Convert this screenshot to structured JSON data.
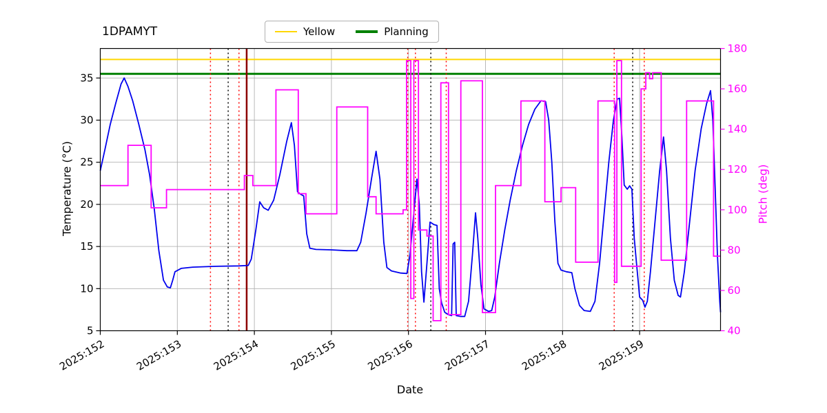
{
  "title": "1DPAMYT",
  "legend": {
    "entries": [
      {
        "label": "Yellow",
        "color": "#ffd700",
        "linewidth": 2.5
      },
      {
        "label": "Planning",
        "color": "#008000",
        "linewidth": 3.5
      }
    ]
  },
  "chart_data": {
    "type": "line",
    "title": "1DPAMYT",
    "xlabel": "Date",
    "ylabel_left": "Temperature (°C)",
    "ylabel_right": "Pitch (deg)",
    "grid": true,
    "xlim": [
      152.0,
      160.05
    ],
    "ylim_temp": [
      5,
      38.5
    ],
    "ylim_pitch": [
      40,
      180
    ],
    "x_ticks": [
      {
        "day": 152,
        "label": "2025:152"
      },
      {
        "day": 153,
        "label": "2025:153"
      },
      {
        "day": 154,
        "label": "2025:154"
      },
      {
        "day": 155,
        "label": "2025:155"
      },
      {
        "day": 156,
        "label": "2025:156"
      },
      {
        "day": 157,
        "label": "2025:157"
      },
      {
        "day": 158,
        "label": "2025:158"
      },
      {
        "day": 159,
        "label": "2025:159"
      }
    ],
    "temp_ticks": [
      5,
      10,
      15,
      20,
      25,
      30,
      35
    ],
    "pitch_ticks": [
      40,
      60,
      80,
      100,
      120,
      140,
      160,
      180
    ],
    "hlines": [
      {
        "name": "Yellow",
        "y": 37.2,
        "color": "#ffd700",
        "width": 2
      },
      {
        "name": "Planning",
        "y": 35.5,
        "color": "#008000",
        "width": 3
      }
    ],
    "vlines": [
      {
        "x": 153.43,
        "color": "#ff0000",
        "style": "dotted",
        "width": 1.5
      },
      {
        "x": 153.66,
        "color": "#000000",
        "style": "dotted",
        "width": 1.5
      },
      {
        "x": 153.8,
        "color": "#ff0000",
        "style": "dotted",
        "width": 1.5
      },
      {
        "x": 153.9,
        "color": "#8b0000",
        "style": "solid",
        "width": 2.5
      },
      {
        "x": 155.99,
        "color": "#ff0000",
        "style": "dotted",
        "width": 1.5
      },
      {
        "x": 156.09,
        "color": "#ff0000",
        "style": "dotted",
        "width": 1.5
      },
      {
        "x": 156.29,
        "color": "#000000",
        "style": "dotted",
        "width": 1.5
      },
      {
        "x": 156.49,
        "color": "#ff0000",
        "style": "dotted",
        "width": 1.5
      },
      {
        "x": 158.67,
        "color": "#ff0000",
        "style": "dotted",
        "width": 1.5
      },
      {
        "x": 158.91,
        "color": "#000000",
        "style": "dotted",
        "width": 1.5
      },
      {
        "x": 159.06,
        "color": "#ff0000",
        "style": "dotted",
        "width": 1.5
      }
    ],
    "series": [
      {
        "name": "Temperature",
        "axis": "left",
        "color": "#0000ee",
        "mode": "linear",
        "points": [
          [
            152.0,
            24.0
          ],
          [
            152.06,
            26.5
          ],
          [
            152.13,
            29.5
          ],
          [
            152.2,
            32.0
          ],
          [
            152.27,
            34.3
          ],
          [
            152.31,
            35.0
          ],
          [
            152.36,
            34.0
          ],
          [
            152.42,
            32.3
          ],
          [
            152.5,
            29.5
          ],
          [
            152.58,
            26.5
          ],
          [
            152.64,
            23.5
          ],
          [
            152.7,
            19.5
          ],
          [
            152.76,
            14.5
          ],
          [
            152.82,
            11.0
          ],
          [
            152.87,
            10.2
          ],
          [
            152.91,
            10.1
          ],
          [
            152.94,
            11.0
          ],
          [
            152.97,
            12.0
          ],
          [
            153.05,
            12.4
          ],
          [
            153.2,
            12.55
          ],
          [
            153.5,
            12.65
          ],
          [
            153.8,
            12.7
          ],
          [
            153.92,
            12.75
          ],
          [
            153.96,
            13.5
          ],
          [
            154.02,
            17.0
          ],
          [
            154.07,
            20.3
          ],
          [
            154.12,
            19.6
          ],
          [
            154.18,
            19.3
          ],
          [
            154.25,
            20.5
          ],
          [
            154.33,
            23.5
          ],
          [
            154.42,
            27.5
          ],
          [
            154.48,
            29.7
          ],
          [
            154.52,
            27.0
          ],
          [
            154.56,
            21.5
          ],
          [
            154.6,
            21.2
          ],
          [
            154.64,
            21.0
          ],
          [
            154.68,
            16.5
          ],
          [
            154.72,
            14.8
          ],
          [
            154.8,
            14.65
          ],
          [
            155.0,
            14.6
          ],
          [
            155.2,
            14.5
          ],
          [
            155.33,
            14.5
          ],
          [
            155.38,
            15.5
          ],
          [
            155.45,
            19.0
          ],
          [
            155.52,
            23.0
          ],
          [
            155.58,
            26.3
          ],
          [
            155.63,
            23.0
          ],
          [
            155.68,
            15.5
          ],
          [
            155.72,
            12.5
          ],
          [
            155.78,
            12.1
          ],
          [
            155.9,
            11.85
          ],
          [
            155.98,
            11.8
          ],
          [
            156.02,
            14.0
          ],
          [
            156.07,
            19.0
          ],
          [
            156.11,
            23.0
          ],
          [
            156.14,
            20.0
          ],
          [
            156.17,
            12.0
          ],
          [
            156.2,
            8.4
          ],
          [
            156.24,
            13.0
          ],
          [
            156.28,
            17.9
          ],
          [
            156.33,
            17.6
          ],
          [
            156.37,
            17.5
          ],
          [
            156.4,
            10.0
          ],
          [
            156.43,
            8.3
          ],
          [
            156.47,
            7.2
          ],
          [
            156.52,
            6.9
          ],
          [
            156.56,
            6.8
          ],
          [
            156.58,
            15.3
          ],
          [
            156.6,
            15.5
          ],
          [
            156.62,
            6.8
          ],
          [
            156.68,
            6.7
          ],
          [
            156.73,
            6.7
          ],
          [
            156.78,
            8.5
          ],
          [
            156.83,
            14.0
          ],
          [
            156.87,
            19.0
          ],
          [
            156.9,
            16.0
          ],
          [
            156.94,
            10.5
          ],
          [
            156.98,
            7.6
          ],
          [
            157.04,
            7.3
          ],
          [
            157.08,
            7.4
          ],
          [
            157.12,
            9.0
          ],
          [
            157.18,
            13.0
          ],
          [
            157.25,
            17.0
          ],
          [
            157.32,
            20.5
          ],
          [
            157.4,
            24.0
          ],
          [
            157.48,
            27.0
          ],
          [
            157.56,
            29.5
          ],
          [
            157.64,
            31.3
          ],
          [
            157.72,
            32.3
          ],
          [
            157.78,
            32.2
          ],
          [
            157.82,
            30.0
          ],
          [
            157.86,
            25.0
          ],
          [
            157.9,
            18.0
          ],
          [
            157.94,
            13.0
          ],
          [
            157.98,
            12.2
          ],
          [
            158.05,
            12.0
          ],
          [
            158.12,
            11.9
          ],
          [
            158.16,
            10.0
          ],
          [
            158.22,
            8.0
          ],
          [
            158.28,
            7.4
          ],
          [
            158.36,
            7.3
          ],
          [
            158.42,
            8.5
          ],
          [
            158.48,
            13.0
          ],
          [
            158.54,
            19.0
          ],
          [
            158.6,
            25.0
          ],
          [
            158.66,
            30.0
          ],
          [
            158.71,
            32.5
          ],
          [
            158.74,
            32.6
          ],
          [
            158.77,
            28.0
          ],
          [
            158.8,
            22.3
          ],
          [
            158.84,
            21.8
          ],
          [
            158.87,
            22.2
          ],
          [
            158.9,
            21.8
          ],
          [
            158.93,
            16.0
          ],
          [
            158.96,
            13.0
          ],
          [
            159.0,
            9.0
          ],
          [
            159.04,
            8.6
          ],
          [
            159.07,
            7.8
          ],
          [
            159.1,
            8.5
          ],
          [
            159.14,
            12.0
          ],
          [
            159.2,
            18.0
          ],
          [
            159.26,
            24.0
          ],
          [
            159.31,
            28.0
          ],
          [
            159.35,
            24.0
          ],
          [
            159.4,
            16.0
          ],
          [
            159.45,
            11.0
          ],
          [
            159.5,
            9.2
          ],
          [
            159.53,
            9.0
          ],
          [
            159.58,
            12.0
          ],
          [
            159.65,
            18.0
          ],
          [
            159.72,
            24.0
          ],
          [
            159.8,
            29.0
          ],
          [
            159.87,
            32.0
          ],
          [
            159.92,
            33.5
          ],
          [
            159.95,
            30.0
          ],
          [
            159.98,
            22.0
          ],
          [
            160.01,
            14.0
          ],
          [
            160.04,
            8.5
          ],
          [
            160.05,
            7.2
          ]
        ]
      },
      {
        "name": "Pitch",
        "axis": "right",
        "color": "#ff00ff",
        "mode": "step-post",
        "points": [
          [
            152.0,
            112
          ],
          [
            152.36,
            132
          ],
          [
            152.66,
            101
          ],
          [
            152.86,
            110
          ],
          [
            153.87,
            117
          ],
          [
            153.98,
            112
          ],
          [
            154.28,
            159.5
          ],
          [
            154.57,
            108
          ],
          [
            154.67,
            98
          ],
          [
            155.07,
            151
          ],
          [
            155.47,
            106.5
          ],
          [
            155.58,
            98
          ],
          [
            155.93,
            100
          ],
          [
            155.975,
            174
          ],
          [
            156.03,
            56
          ],
          [
            156.07,
            174
          ],
          [
            156.13,
            90
          ],
          [
            156.24,
            87
          ],
          [
            156.32,
            45
          ],
          [
            156.42,
            163
          ],
          [
            156.52,
            48
          ],
          [
            156.68,
            164
          ],
          [
            156.96,
            49
          ],
          [
            157.13,
            112
          ],
          [
            157.46,
            154
          ],
          [
            157.77,
            104
          ],
          [
            157.98,
            111
          ],
          [
            158.17,
            74
          ],
          [
            158.46,
            154
          ],
          [
            158.675,
            64
          ],
          [
            158.705,
            174
          ],
          [
            158.765,
            72
          ],
          [
            159.02,
            160
          ],
          [
            159.08,
            168
          ],
          [
            159.13,
            165
          ],
          [
            159.17,
            168
          ],
          [
            159.28,
            75
          ],
          [
            159.61,
            154
          ],
          [
            159.96,
            77
          ]
        ]
      }
    ]
  }
}
